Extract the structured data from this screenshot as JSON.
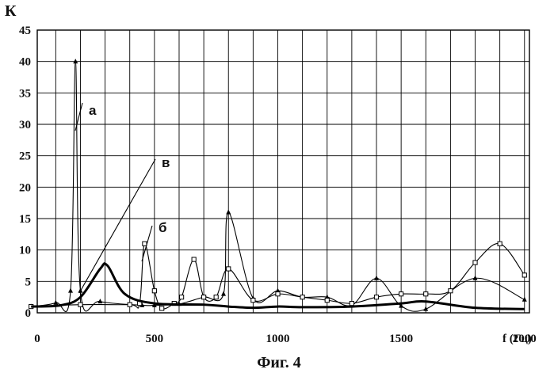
{
  "chart_data": {
    "type": "line",
    "title": "",
    "caption": "Фиг. 4",
    "ylabel": "К",
    "xlabel": "f (Гц)",
    "xlim": [
      0,
      2000
    ],
    "ylim": [
      0,
      45
    ],
    "x_ticks": [
      "0",
      "500",
      "1000",
      "1500",
      "2000"
    ],
    "y_ticks": [
      "0",
      "5",
      "10",
      "15",
      "20",
      "25",
      "30",
      "35",
      "40",
      "45"
    ],
    "grid": true,
    "legend": "none",
    "annotations": [
      {
        "text": "а",
        "target_x": 155,
        "target_y": 29
      },
      {
        "text": "в",
        "target_x": 185,
        "target_y": 4
      },
      {
        "text": "б",
        "target_x": 445,
        "target_y": 10
      }
    ],
    "series": [
      {
        "marker": "triangle",
        "x": [
          0,
          100,
          160,
          180,
          200,
          280,
          450,
          500,
          600,
          700,
          780,
          800,
          900,
          1000,
          1100,
          1200,
          1300,
          1400,
          1500,
          1600,
          1800,
          2000
        ],
        "y": [
          1,
          1.6,
          3.5,
          40,
          3.5,
          1.8,
          1.2,
          1.2,
          1.4,
          2.5,
          3,
          16,
          2.3,
          3.5,
          2.5,
          2.5,
          1.2,
          5.5,
          1.1,
          0.6,
          5.5,
          2.1
        ]
      },
      {
        "marker": "square",
        "x": [
          0,
          200,
          400,
          440,
          460,
          500,
          530,
          580,
          610,
          660,
          700,
          750,
          800,
          900,
          1000,
          1100,
          1200,
          1300,
          1400,
          1500,
          1600,
          1700,
          1800,
          1900,
          2000
        ],
        "y": [
          1,
          1.3,
          1.3,
          1.5,
          11,
          3.5,
          0.7,
          1.5,
          2.5,
          8.5,
          2.5,
          2.5,
          7,
          2,
          3,
          2.5,
          2,
          1.5,
          2.5,
          3,
          3,
          3.5,
          8,
          11,
          6
        ]
      },
      {
        "marker": "none",
        "x": [
          0,
          120,
          200,
          280,
          310,
          380,
          500,
          700,
          800,
          900,
          1000,
          1100,
          1300,
          1500,
          1600,
          1800,
          2000
        ],
        "y": [
          1,
          1.2,
          2.5,
          7,
          7.5,
          3,
          1.5,
          1.3,
          1,
          0.8,
          1,
          0.9,
          1,
          1.5,
          1.8,
          0.8,
          0.6
        ]
      }
    ]
  }
}
